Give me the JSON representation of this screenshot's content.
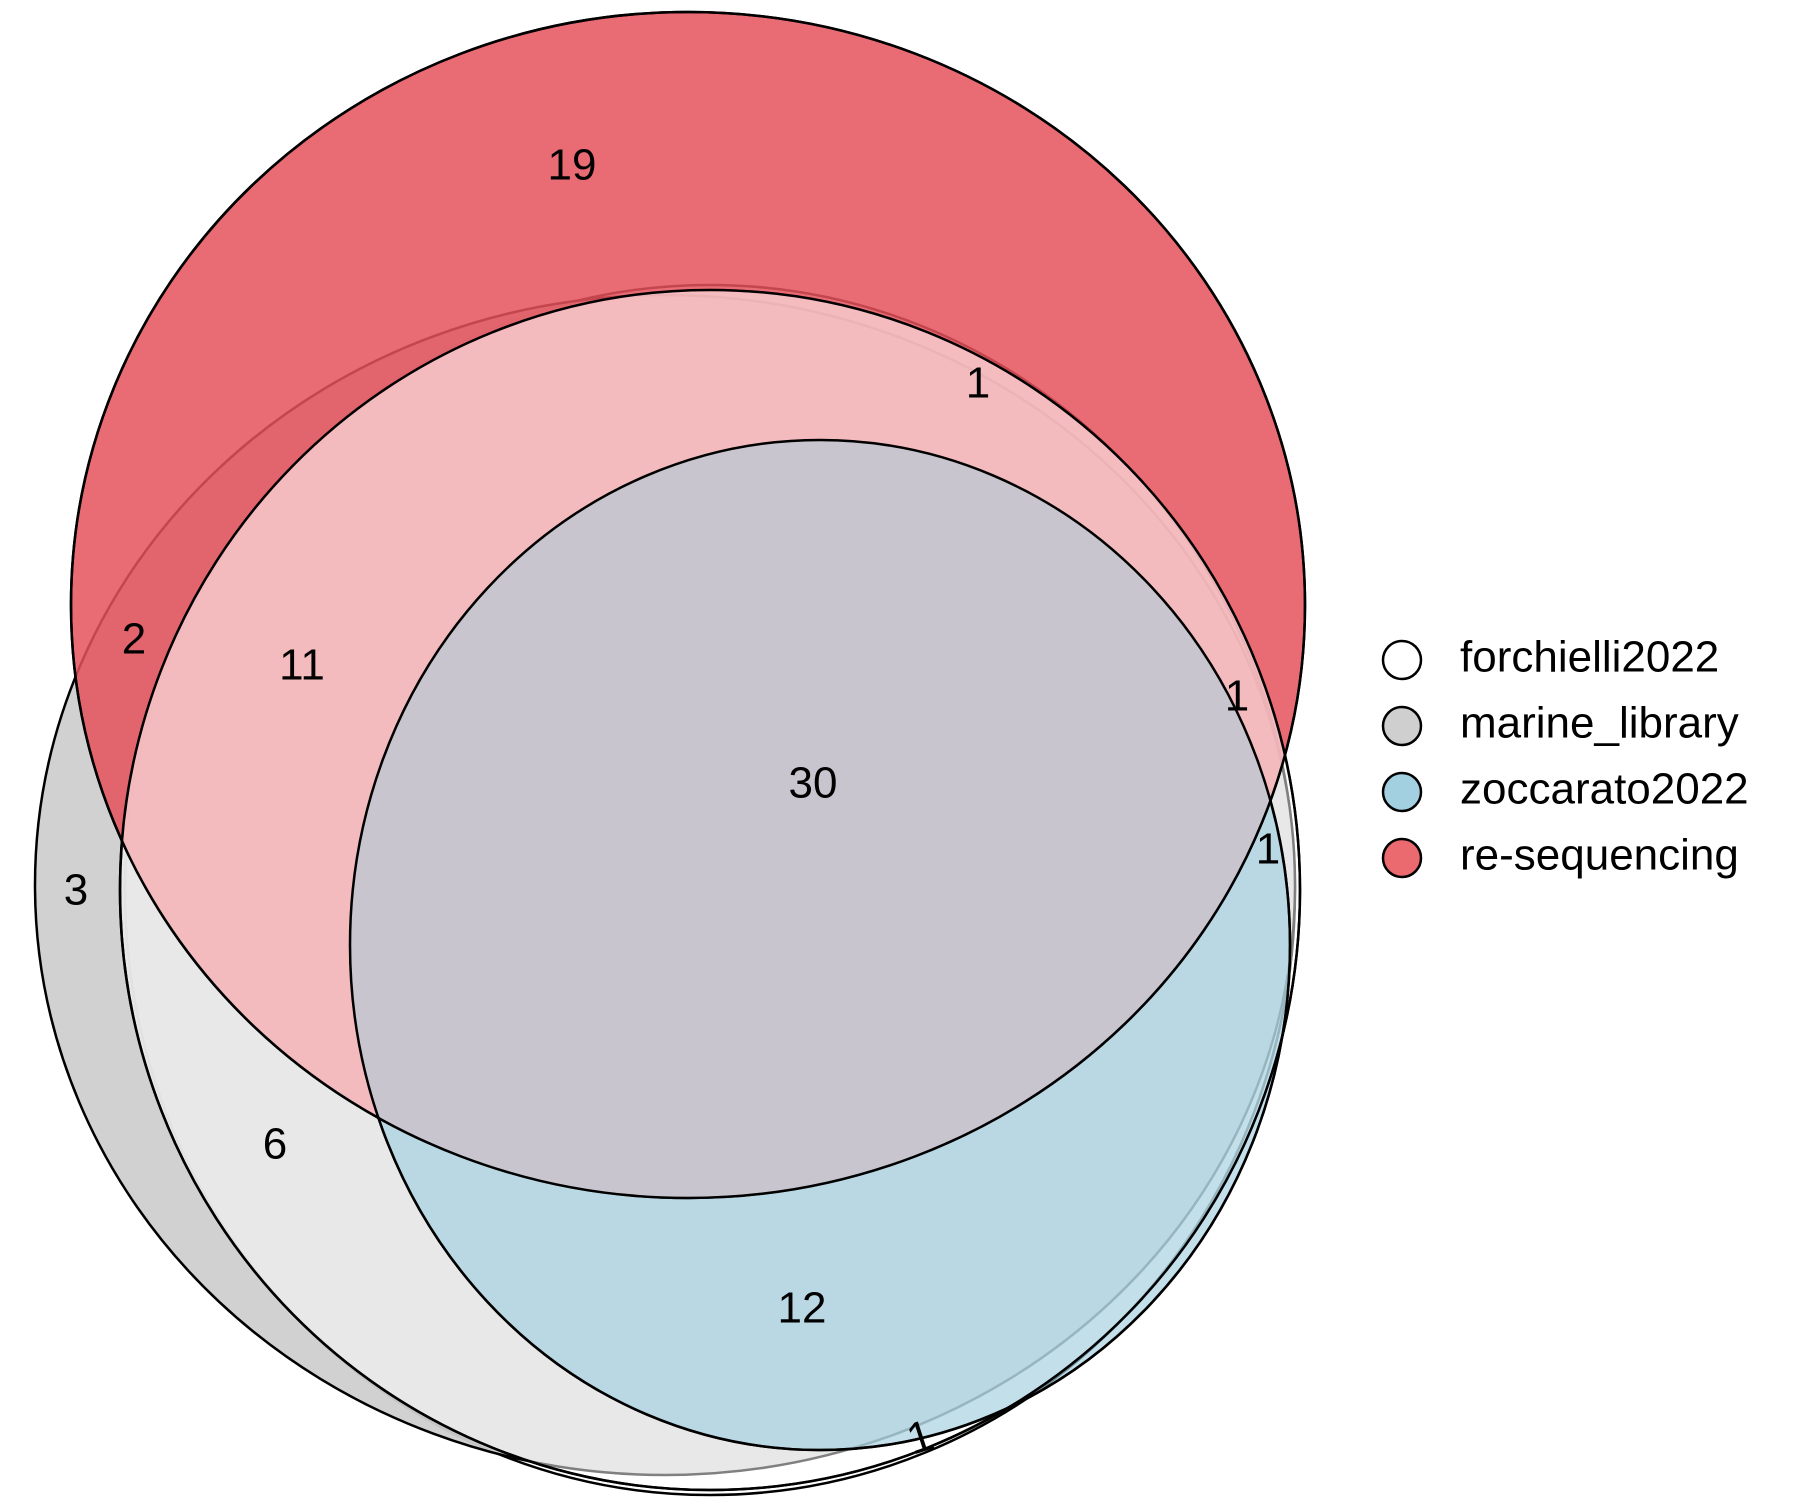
{
  "sets": [
    {
      "key": "forchielli2022",
      "name": "forchielli2022",
      "color": "#ffffff"
    },
    {
      "key": "marine_library",
      "name": "marine_library",
      "color": "#cfcfcf"
    },
    {
      "key": "zoccarato2022",
      "name": "zoccarato2022",
      "color": "#a3d0e0"
    },
    {
      "key": "re_sequencing",
      "name": "re-sequencing",
      "color": "#ea6a6f"
    }
  ],
  "regions": [
    {
      "key": "only_resequencing",
      "sets": [
        "re-sequencing"
      ],
      "count": "19"
    },
    {
      "key": "resequencing_marine",
      "sets": [
        "re-sequencing",
        "marine_library"
      ],
      "count": "2"
    },
    {
      "key": "resequencing_marine_forchielli",
      "sets": [
        "re-sequencing",
        "marine_library",
        "forchielli2022"
      ],
      "count": "11"
    },
    {
      "key": "resequencing_forchielli_top",
      "sets": [
        "re-sequencing",
        "forchielli2022"
      ],
      "count": "1"
    },
    {
      "key": "resequencing_forchielli_zoccarato",
      "sets": [
        "re-sequencing",
        "forchielli2022",
        "zoccarato2022"
      ],
      "count": "1"
    },
    {
      "key": "all_four",
      "sets": [
        "re-sequencing",
        "marine_library",
        "forchielli2022",
        "zoccarato2022"
      ],
      "count": "30"
    },
    {
      "key": "resequencing_zoccarato",
      "sets": [
        "re-sequencing",
        "zoccarato2022"
      ],
      "count": "1"
    },
    {
      "key": "only_marine",
      "sets": [
        "marine_library"
      ],
      "count": "3"
    },
    {
      "key": "marine_forchielli",
      "sets": [
        "marine_library",
        "forchielli2022"
      ],
      "count": "6"
    },
    {
      "key": "marine_forchielli_zoccarato",
      "sets": [
        "marine_library",
        "forchielli2022",
        "zoccarato2022"
      ],
      "count": "12"
    },
    {
      "key": "forchielli_zoccarato",
      "sets": [
        "forchielli2022",
        "zoccarato2022"
      ],
      "count": "1"
    }
  ]
}
